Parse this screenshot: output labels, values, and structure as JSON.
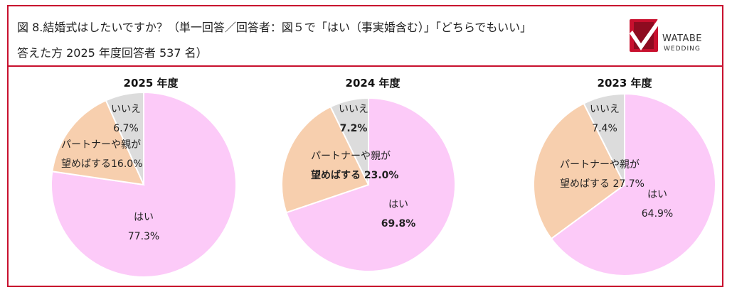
{
  "header": {
    "title_line1": "図 8.結婚式はしたいですか？（単一回答／回答者：図５で「はい（事実婚含む）」「どちらでもいい」",
    "title_line2": "答えた方 2025 年度回答者 537 名）",
    "logo_text": "WATABE",
    "logo_subtext": "WEDDING"
  },
  "colors": {
    "frame": "#c8102e",
    "yes": "#fccaf8",
    "partner": "#f7cfae",
    "no": "#dcdcdc"
  },
  "chart_data": [
    {
      "type": "pie",
      "title": "2025 年度",
      "categories": [
        "はい",
        "パートナーや親が望めばする",
        "いいえ"
      ],
      "values": [
        77.3,
        16.0,
        6.7
      ],
      "labels": [
        {
          "lines": [
            "はい",
            "77.3%"
          ]
        },
        {
          "lines": [
            "パートナーや親が",
            "望めばする16.0%"
          ]
        },
        {
          "lines": [
            "いいえ",
            "6.7%"
          ]
        }
      ]
    },
    {
      "type": "pie",
      "title": "2024 年度",
      "categories": [
        "はい",
        "パートナーや親が望めばする",
        "いいえ"
      ],
      "values": [
        69.8,
        23.0,
        7.2
      ],
      "labels": [
        {
          "lines": [
            "はい",
            "69.8%"
          ]
        },
        {
          "lines": [
            "パートナーや親が",
            "望めばする 23.0%"
          ]
        },
        {
          "lines": [
            "いいえ",
            "7.2%"
          ]
        }
      ]
    },
    {
      "type": "pie",
      "title": "2023 年度",
      "categories": [
        "はい",
        "パートナーや親が望めばする",
        "いいえ"
      ],
      "values": [
        64.9,
        27.7,
        7.4
      ],
      "labels": [
        {
          "lines": [
            "はい",
            "64.9%"
          ]
        },
        {
          "lines": [
            "パートナーや親が",
            "望めばする 27.7%"
          ]
        },
        {
          "lines": [
            "いいえ",
            "7.4%"
          ]
        }
      ]
    }
  ]
}
